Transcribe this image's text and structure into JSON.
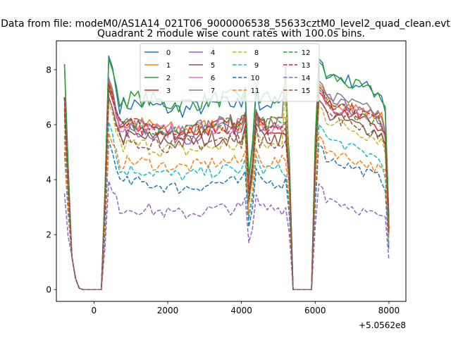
{
  "chart_data": {
    "type": "line",
    "suptitle": "Data from file: modeM0/AS1A14_021T06_9000006538_55633cztM0_level2_quad_clean.evt",
    "title": "Quadrant 2 module wise count rates with 100.0s bins.",
    "xlabel": "",
    "ylabel": "",
    "x_offset_label": "+5.0562e8",
    "xlim": [
      -1020,
      8460
    ],
    "ylim": [
      -0.43,
      9.05
    ],
    "xticks": [
      0,
      2000,
      4000,
      6000,
      8000
    ],
    "yticks": [
      0,
      2,
      4,
      6,
      8
    ],
    "xtick_labels": [
      "0",
      "2000",
      "4000",
      "6000",
      "8000"
    ],
    "ytick_labels": [
      "0",
      "2",
      "4",
      "6",
      "8"
    ],
    "legend": {
      "location": "upper center",
      "ncols": 4
    },
    "x_start": -800,
    "x_step": 100,
    "gap_bins": [
      5,
      6,
      7,
      8,
      9,
      10,
      62,
      63,
      64,
      65,
      66,
      67
    ],
    "series": [
      {
        "name": "0",
        "color": "#1f77b4",
        "style": "solid",
        "top": 8.2,
        "level": 6.65,
        "post_peak": 8.4
      },
      {
        "name": "1",
        "color": "#ff7f0e",
        "style": "solid",
        "top": 7.0,
        "level": 5.9,
        "post_peak": 7.5
      },
      {
        "name": "2",
        "color": "#2ca02c",
        "style": "solid",
        "top": 8.2,
        "level": 6.85,
        "post_peak": 8.3
      },
      {
        "name": "3",
        "color": "#d62728",
        "style": "solid",
        "top": 7.0,
        "level": 5.85,
        "post_peak": 7.2
      },
      {
        "name": "4",
        "color": "#9467bd",
        "style": "solid",
        "top": 7.0,
        "level": 5.7,
        "post_peak": 7.4
      },
      {
        "name": "5",
        "color": "#8c564b",
        "style": "solid",
        "top": 6.6,
        "level": 5.45,
        "post_peak": 6.9
      },
      {
        "name": "6",
        "color": "#e377c2",
        "style": "solid",
        "top": 7.0,
        "level": 5.85,
        "post_peak": 7.3
      },
      {
        "name": "7",
        "color": "#7f7f7f",
        "style": "solid",
        "top": 7.0,
        "level": 5.95,
        "post_peak": 7.6
      },
      {
        "name": "8",
        "color": "#bcbd22",
        "style": "dashed",
        "top": 6.0,
        "level": 5.15,
        "post_peak": 6.7
      },
      {
        "name": "9",
        "color": "#17becf",
        "style": "dashed",
        "top": 5.6,
        "level": 4.25,
        "post_peak": 6.0
      },
      {
        "name": "10",
        "color": "#1f77b4",
        "style": "dashed",
        "top": 5.0,
        "level": 3.8,
        "post_peak": 5.3
      },
      {
        "name": "11",
        "color": "#ff7f0e",
        "style": "dashed",
        "top": 5.4,
        "level": 4.55,
        "post_peak": 5.6
      },
      {
        "name": "12",
        "color": "#2ca02c",
        "style": "dashed",
        "top": 7.0,
        "level": 5.9,
        "post_peak": 7.3
      },
      {
        "name": "13",
        "color": "#d62728",
        "style": "dashed",
        "top": 7.0,
        "level": 5.85,
        "post_peak": 7.4
      },
      {
        "name": "14",
        "color": "#9467bd",
        "style": "dashed",
        "top": 3.5,
        "level": 2.85,
        "post_peak": 3.85
      },
      {
        "name": "15",
        "color": "#8c564b",
        "style": "dashed",
        "top": 6.4,
        "level": 5.35,
        "post_peak": 6.9
      }
    ]
  }
}
